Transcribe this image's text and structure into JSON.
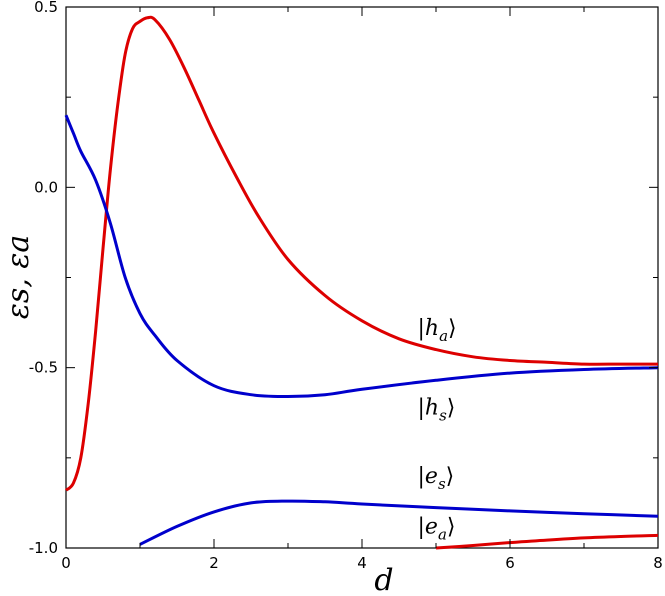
{
  "chart_data": {
    "type": "line",
    "xlabel": "d",
    "ylabel": "εs, εa",
    "xlim": [
      0,
      8
    ],
    "ylim": [
      -1.0,
      0.5
    ],
    "xticks": [
      0,
      2,
      4,
      6,
      8
    ],
    "yticks": [
      0.5,
      0.0,
      -0.5,
      -1.0
    ],
    "xtick_labels": [
      "0",
      "2",
      "4",
      "6",
      "8"
    ],
    "ytick_labels": [
      "0.5",
      "0.0",
      "-0.5",
      "-1.0"
    ],
    "grid": false,
    "series": [
      {
        "name": "|h_a⟩",
        "color": "#dd0000",
        "x": [
          0,
          0.1,
          0.2,
          0.3,
          0.4,
          0.5,
          0.6,
          0.7,
          0.8,
          0.9,
          1.0,
          1.1,
          1.2,
          1.4,
          1.6,
          1.8,
          2.0,
          2.3,
          2.6,
          3.0,
          3.5,
          4.0,
          4.5,
          5.0,
          5.5,
          6.0,
          6.5,
          7.0,
          7.5,
          8.0
        ],
        "y": [
          -0.84,
          -0.82,
          -0.75,
          -0.6,
          -0.4,
          -0.17,
          0.05,
          0.23,
          0.37,
          0.44,
          0.46,
          0.47,
          0.465,
          0.41,
          0.33,
          0.24,
          0.15,
          0.03,
          -0.08,
          -0.2,
          -0.3,
          -0.37,
          -0.42,
          -0.45,
          -0.47,
          -0.48,
          -0.485,
          -0.49,
          -0.49,
          -0.49
        ]
      },
      {
        "name": "|h_s⟩",
        "color": "#0000cc",
        "x": [
          0,
          0.1,
          0.2,
          0.4,
          0.6,
          0.8,
          1.0,
          1.2,
          1.5,
          2.0,
          2.5,
          3.0,
          3.5,
          4.0,
          5.0,
          6.0,
          7.0,
          8.0
        ],
        "y": [
          0.2,
          0.15,
          0.1,
          0.02,
          -0.1,
          -0.25,
          -0.35,
          -0.41,
          -0.48,
          -0.55,
          -0.575,
          -0.58,
          -0.575,
          -0.56,
          -0.535,
          -0.515,
          -0.505,
          -0.5
        ]
      },
      {
        "name": "|e_s⟩",
        "color": "#0000cc",
        "x": [
          1.0,
          1.5,
          2.0,
          2.5,
          3.0,
          3.5,
          4.0,
          5.0,
          6.0,
          7.0,
          8.0
        ],
        "y": [
          -0.99,
          -0.94,
          -0.9,
          -0.875,
          -0.87,
          -0.872,
          -0.878,
          -0.888,
          -0.897,
          -0.905,
          -0.912
        ]
      },
      {
        "name": "|e_a⟩",
        "color": "#dd0000",
        "x": [
          5.0,
          5.5,
          6.0,
          6.5,
          7.0,
          7.5,
          8.0
        ],
        "y": [
          -1.0,
          -0.993,
          -0.985,
          -0.978,
          -0.972,
          -0.968,
          -0.965
        ]
      }
    ],
    "annotations": [
      {
        "series": "h_a",
        "base": "h",
        "sub": "a",
        "x": 4.75,
        "y": -0.41
      },
      {
        "series": "h_s",
        "base": "h",
        "sub": "s",
        "x": 4.75,
        "y": -0.63
      },
      {
        "series": "e_s",
        "base": "e",
        "sub": "s",
        "x": 4.75,
        "y": -0.82
      },
      {
        "series": "e_a",
        "base": "e",
        "sub": "a",
        "x": 4.75,
        "y": -0.96
      }
    ]
  }
}
